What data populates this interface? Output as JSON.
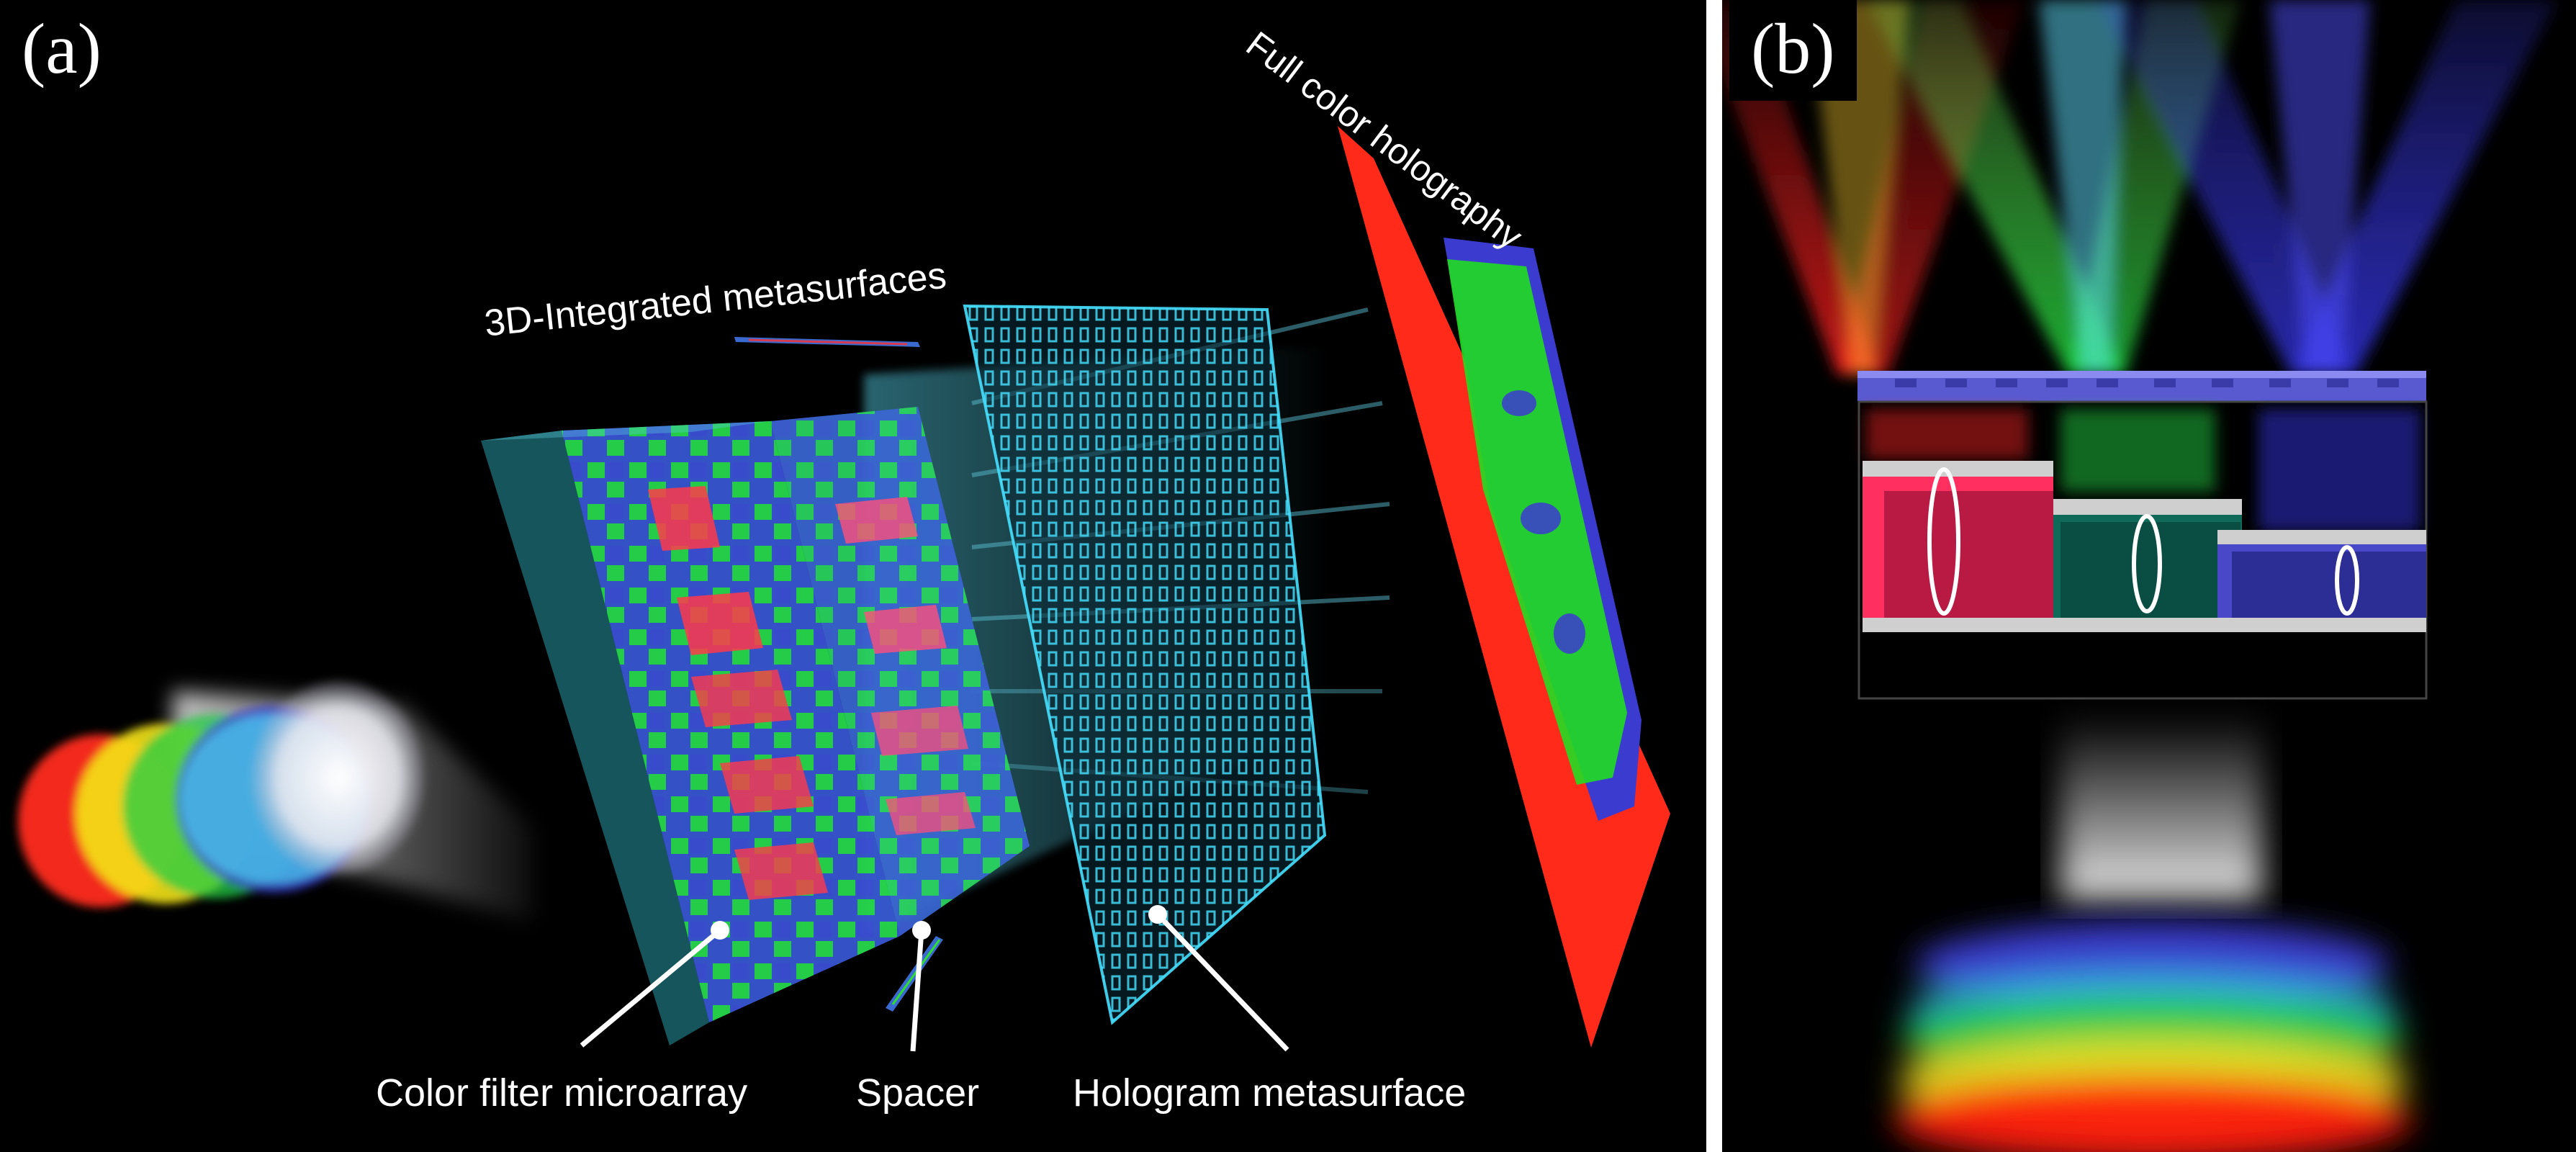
{
  "panel_a": {
    "tag": "(a)",
    "title_3d": "3D-Integrated metasurfaces",
    "title_full_color": "Full color holography",
    "label_filter": "Color filter microarray",
    "label_spacer": "Spacer",
    "label_hologram": "Hologram metasurface"
  },
  "panel_b": {
    "tag": "(b)"
  },
  "colors": {
    "background": "#000000",
    "red": "#ff2a1a",
    "green": "#22dd22",
    "blue": "#3b3bd0",
    "cyan": "#40d8ff",
    "pink": "#ff4f7a"
  }
}
